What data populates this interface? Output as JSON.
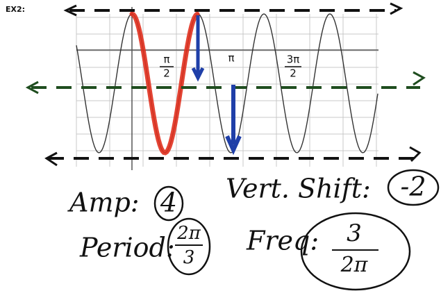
{
  "label": "EX2:",
  "axis_labels": [
    {
      "numerator": "π",
      "denominator": "2"
    },
    {
      "numerator": "π"
    },
    {
      "numerator": "3π",
      "denominator": "2"
    }
  ],
  "notes": {
    "amp": {
      "label": "Amp:",
      "value": "4"
    },
    "vert_shift": {
      "label": "Vert. Shift:",
      "value": "-2"
    },
    "period": {
      "label": "Period:",
      "numerator": "2π",
      "denominator": "3"
    },
    "freq": {
      "label": "Freq:",
      "numerator": "3",
      "denominator": "2π"
    }
  }
}
